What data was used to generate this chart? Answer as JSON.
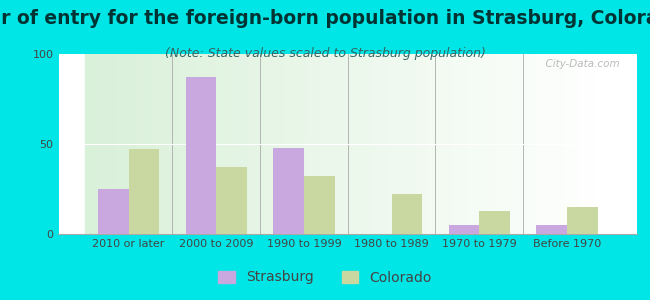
{
  "title": "Year of entry for the foreign-born population in Strasburg, Colorado",
  "subtitle": "(Note: State values scaled to Strasburg population)",
  "categories": [
    "2010 or later",
    "2000 to 2009",
    "1990 to 1999",
    "1980 to 1989",
    "1970 to 1979",
    "Before 1970"
  ],
  "strasburg_values": [
    25,
    87,
    48,
    0,
    5,
    5
  ],
  "colorado_values": [
    47,
    37,
    32,
    22,
    13,
    15
  ],
  "strasburg_color": "#c9a8e0",
  "colorado_color": "#c8d8a0",
  "background_outer": "#00e5e5",
  "ylim": [
    0,
    100
  ],
  "yticks": [
    0,
    50,
    100
  ],
  "bar_width": 0.35,
  "title_fontsize": 13.5,
  "subtitle_fontsize": 9,
  "tick_fontsize": 8,
  "legend_fontsize": 10,
  "watermark": "  City-Data.com"
}
